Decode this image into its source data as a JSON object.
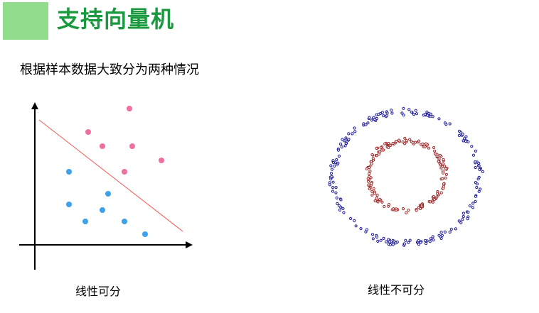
{
  "colors": {
    "title_block": "#92dc8e",
    "title_text": "#1a9a3e",
    "pink_point": "#f06fa1",
    "blue_point": "#3fa1e9",
    "separator": "#f25a5a",
    "outer_ring": "#1f1c9c",
    "inner_ring": "#a12b2b"
  },
  "header": {
    "title": "支持向量机"
  },
  "intro": {
    "text": "根据样本数据大致分为两种情况"
  },
  "left_panel": {
    "caption": "线性可分",
    "separator_line": "red-diagonal-line",
    "pink_class_count": 6,
    "blue_class_count": 7
  },
  "right_panel": {
    "caption": "线性不可分",
    "outer_ring_class": "blue-scatter-ring",
    "inner_ring_class": "red-scatter-ring"
  }
}
